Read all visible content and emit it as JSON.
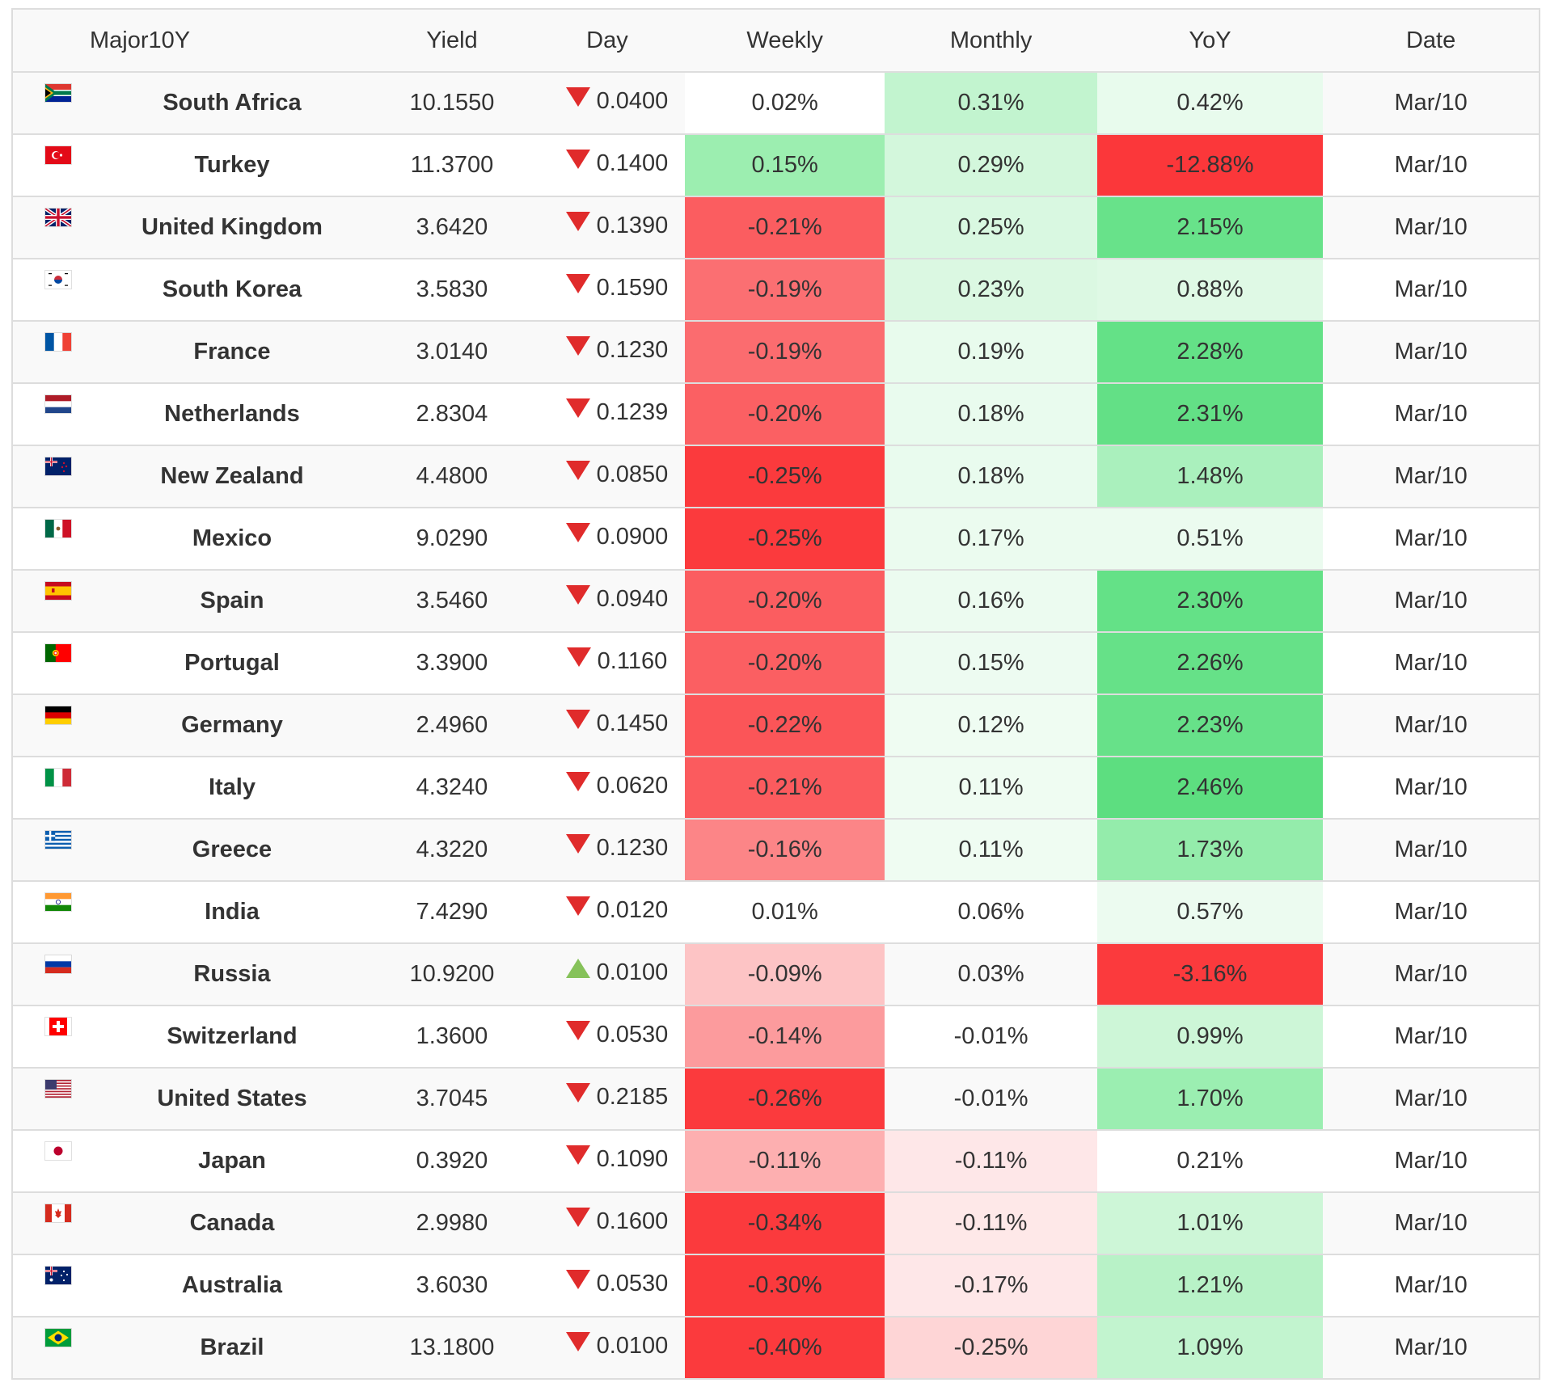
{
  "header": {
    "name": "Major10Y",
    "yield": "Yield",
    "day": "Day",
    "weekly": "Weekly",
    "monthly": "Monthly",
    "yoy": "YoY",
    "date": "Date"
  },
  "rows": [
    {
      "flag": "south-africa-flag",
      "country": "South Africa",
      "yield": "10.1550",
      "day_dir": "down",
      "day": "0.0400",
      "weekly": "0.02%",
      "monthly": "0.31%",
      "yoy": "0.42%",
      "date": "Mar/10",
      "weekly_bg": "#ffffff",
      "monthly_bg": "#c2f4cf",
      "yoy_bg": "#e8fbed"
    },
    {
      "flag": "turkey-flag",
      "country": "Turkey",
      "yield": "11.3700",
      "day_dir": "down",
      "day": "0.1400",
      "weekly": "0.15%",
      "monthly": "0.29%",
      "yoy": "-12.88%",
      "date": "Mar/10",
      "weekly_bg": "#9ceeb0",
      "monthly_bg": "#d3f7dc",
      "yoy_bg": "#fb373a"
    },
    {
      "flag": "united-kingdom-flag",
      "country": "United Kingdom",
      "yield": "3.6420",
      "day_dir": "down",
      "day": "0.1390",
      "weekly": "-0.21%",
      "monthly": "0.25%",
      "yoy": "2.15%",
      "date": "Mar/10",
      "weekly_bg": "#fb5d60",
      "monthly_bg": "#d9f8e1",
      "yoy_bg": "#68e28a"
    },
    {
      "flag": "south-korea-flag",
      "country": "South Korea",
      "yield": "3.5830",
      "day_dir": "down",
      "day": "0.1590",
      "weekly": "-0.19%",
      "monthly": "0.23%",
      "yoy": "0.88%",
      "date": "Mar/10",
      "weekly_bg": "#fb6f72",
      "monthly_bg": "#dbf8e2",
      "yoy_bg": "#dff9e5"
    },
    {
      "flag": "france-flag",
      "country": "France",
      "yield": "3.0140",
      "day_dir": "down",
      "day": "0.1230",
      "weekly": "-0.19%",
      "monthly": "0.19%",
      "yoy": "2.28%",
      "date": "Mar/10",
      "weekly_bg": "#fb6c6f",
      "monthly_bg": "#e8fbed",
      "yoy_bg": "#64e187"
    },
    {
      "flag": "netherlands-flag",
      "country": "Netherlands",
      "yield": "2.8304",
      "day_dir": "down",
      "day": "0.1239",
      "weekly": "-0.20%",
      "monthly": "0.18%",
      "yoy": "2.31%",
      "date": "Mar/10",
      "weekly_bg": "#fb6063",
      "monthly_bg": "#e9fbee",
      "yoy_bg": "#63e086"
    },
    {
      "flag": "new-zealand-flag",
      "country": "New Zealand",
      "yield": "4.4800",
      "day_dir": "down",
      "day": "0.0850",
      "weekly": "-0.25%",
      "monthly": "0.18%",
      "yoy": "1.48%",
      "date": "Mar/10",
      "weekly_bg": "#fb3a3d",
      "monthly_bg": "#e9fbee",
      "yoy_bg": "#aaf0bd"
    },
    {
      "flag": "mexico-flag",
      "country": "Mexico",
      "yield": "9.0290",
      "day_dir": "down",
      "day": "0.0900",
      "weekly": "-0.25%",
      "monthly": "0.17%",
      "yoy": "0.51%",
      "date": "Mar/10",
      "weekly_bg": "#fb3a3d",
      "monthly_bg": "#ebfbef",
      "yoy_bg": "#ebfbef"
    },
    {
      "flag": "spain-flag",
      "country": "Spain",
      "yield": "3.5460",
      "day_dir": "down",
      "day": "0.0940",
      "weekly": "-0.20%",
      "monthly": "0.16%",
      "yoy": "2.30%",
      "date": "Mar/10",
      "weekly_bg": "#fb5d60",
      "monthly_bg": "#ecfbf0",
      "yoy_bg": "#64e187"
    },
    {
      "flag": "portugal-flag",
      "country": "Portugal",
      "yield": "3.3900",
      "day_dir": "down",
      "day": "0.1160",
      "weekly": "-0.20%",
      "monthly": "0.15%",
      "yoy": "2.26%",
      "date": "Mar/10",
      "weekly_bg": "#fb5f62",
      "monthly_bg": "#edfbf1",
      "yoy_bg": "#66e188"
    },
    {
      "flag": "germany-flag",
      "country": "Germany",
      "yield": "2.4960",
      "day_dir": "down",
      "day": "0.1450",
      "weekly": "-0.22%",
      "monthly": "0.12%",
      "yoy": "2.23%",
      "date": "Mar/10",
      "weekly_bg": "#fb5558",
      "monthly_bg": "#effcf2",
      "yoy_bg": "#67e189"
    },
    {
      "flag": "italy-flag",
      "country": "Italy",
      "yield": "4.3240",
      "day_dir": "down",
      "day": "0.0620",
      "weekly": "-0.21%",
      "monthly": "0.11%",
      "yoy": "2.46%",
      "date": "Mar/10",
      "weekly_bg": "#fb5b5e",
      "monthly_bg": "#effcf2",
      "yoy_bg": "#5dde80"
    },
    {
      "flag": "greece-flag",
      "country": "Greece",
      "yield": "4.3220",
      "day_dir": "down",
      "day": "0.1230",
      "weekly": "-0.16%",
      "monthly": "0.11%",
      "yoy": "1.73%",
      "date": "Mar/10",
      "weekly_bg": "#fc8587",
      "monthly_bg": "#effcf2",
      "yoy_bg": "#94ecab"
    },
    {
      "flag": "india-flag",
      "country": "India",
      "yield": "7.4290",
      "day_dir": "down",
      "day": "0.0120",
      "weekly": "0.01%",
      "monthly": "0.06%",
      "yoy": "0.57%",
      "date": "Mar/10",
      "weekly_bg": "#ffffff",
      "monthly_bg": "#ffffff",
      "yoy_bg": "#ecfbf0"
    },
    {
      "flag": "russia-flag",
      "country": "Russia",
      "yield": "10.9200",
      "day_dir": "up",
      "day": "0.0100",
      "weekly": "-0.09%",
      "monthly": "0.03%",
      "yoy": "-3.16%",
      "date": "Mar/10",
      "weekly_bg": "#fdc4c5",
      "monthly_bg": "#f9f9f9",
      "yoy_bg": "#fb3a3d"
    },
    {
      "flag": "switzerland-flag",
      "country": "Switzerland",
      "yield": "1.3600",
      "day_dir": "down",
      "day": "0.0530",
      "weekly": "-0.14%",
      "monthly": "-0.01%",
      "yoy": "0.99%",
      "date": "Mar/10",
      "weekly_bg": "#fc9b9d",
      "monthly_bg": "#ffffff",
      "yoy_bg": "#cdf6d7"
    },
    {
      "flag": "united-states-flag",
      "country": "United States",
      "yield": "3.7045",
      "day_dir": "down",
      "day": "0.2185",
      "weekly": "-0.26%",
      "monthly": "-0.01%",
      "yoy": "1.70%",
      "date": "Mar/10",
      "weekly_bg": "#fb3a3d",
      "monthly_bg": "#f9f9f9",
      "yoy_bg": "#9beeb1"
    },
    {
      "flag": "japan-flag",
      "country": "Japan",
      "yield": "0.3920",
      "day_dir": "down",
      "day": "0.1090",
      "weekly": "-0.11%",
      "monthly": "-0.11%",
      "yoy": "0.21%",
      "date": "Mar/10",
      "weekly_bg": "#fdafb0",
      "monthly_bg": "#fee7e8",
      "yoy_bg": "#ffffff"
    },
    {
      "flag": "canada-flag",
      "country": "Canada",
      "yield": "2.9980",
      "day_dir": "down",
      "day": "0.1600",
      "weekly": "-0.34%",
      "monthly": "-0.11%",
      "yoy": "1.01%",
      "date": "Mar/10",
      "weekly_bg": "#fb3a3d",
      "monthly_bg": "#fee8e8",
      "yoy_bg": "#cdf6d7"
    },
    {
      "flag": "australia-flag",
      "country": "Australia",
      "yield": "3.6030",
      "day_dir": "down",
      "day": "0.0530",
      "weekly": "-0.30%",
      "monthly": "-0.17%",
      "yoy": "1.21%",
      "date": "Mar/10",
      "weekly_bg": "#fb3a3d",
      "monthly_bg": "#fee7e8",
      "yoy_bg": "#b8f2c7"
    },
    {
      "flag": "brazil-flag",
      "country": "Brazil",
      "yield": "13.1800",
      "day_dir": "down",
      "day": "0.0100",
      "weekly": "-0.40%",
      "monthly": "-0.25%",
      "yoy": "1.09%",
      "date": "Mar/10",
      "weekly_bg": "#fb3a3d",
      "monthly_bg": "#fed5d6",
      "yoy_bg": "#c2f4cf"
    }
  ]
}
